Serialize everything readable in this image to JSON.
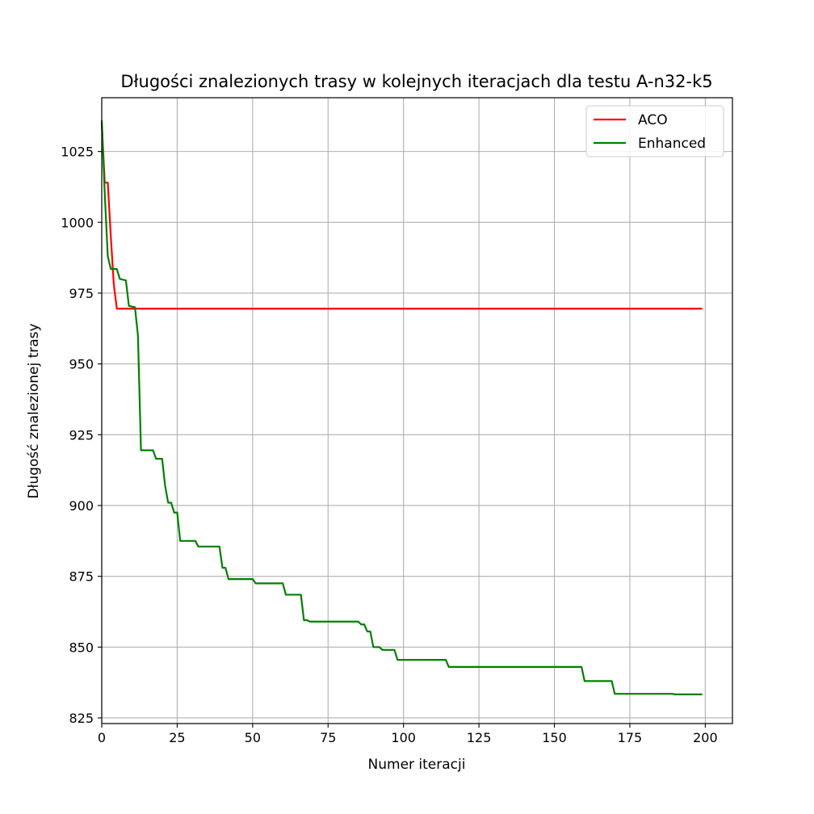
{
  "chart_data": {
    "type": "line",
    "title": "Długości znalezionych trasy w kolejnych iteracjach dla testu A-n32-k5",
    "xlabel": "Numer iteracji",
    "ylabel": "Długość znalezionej trasy",
    "xlim": [
      0,
      209
    ],
    "ylim": [
      823,
      1044
    ],
    "xticks": [
      0,
      25,
      50,
      75,
      100,
      125,
      150,
      175,
      200
    ],
    "yticks": [
      825,
      850,
      875,
      900,
      925,
      950,
      975,
      1000,
      1025
    ],
    "grid": true,
    "legend_position": "top-right",
    "series": [
      {
        "name": "ACO",
        "color": "#ff0000",
        "points": [
          [
            0,
            1035
          ],
          [
            1,
            1014
          ],
          [
            2,
            1014
          ],
          [
            3,
            995
          ],
          [
            4,
            978
          ],
          [
            5,
            969.5
          ],
          [
            199,
            969.5
          ]
        ]
      },
      {
        "name": "Enhanced",
        "color": "#008000",
        "points": [
          [
            0,
            1036
          ],
          [
            1,
            1010
          ],
          [
            2,
            988
          ],
          [
            3,
            983.5
          ],
          [
            5,
            983.5
          ],
          [
            6,
            980
          ],
          [
            8,
            979.5
          ],
          [
            9,
            970.5
          ],
          [
            11,
            970
          ],
          [
            12,
            960
          ],
          [
            13,
            919.5
          ],
          [
            17,
            919.5
          ],
          [
            18,
            916.5
          ],
          [
            20,
            916.5
          ],
          [
            21,
            907
          ],
          [
            22,
            901
          ],
          [
            23,
            901
          ],
          [
            24,
            897.5
          ],
          [
            25,
            897.5
          ],
          [
            26,
            887.5
          ],
          [
            31,
            887.5
          ],
          [
            32,
            885.5
          ],
          [
            39,
            885.5
          ],
          [
            40,
            878
          ],
          [
            41,
            878
          ],
          [
            42,
            874
          ],
          [
            50,
            874
          ],
          [
            51,
            872.5
          ],
          [
            60,
            872.5
          ],
          [
            61,
            868.5
          ],
          [
            66,
            868.5
          ],
          [
            67,
            859.5
          ],
          [
            68,
            859.5
          ],
          [
            69,
            859
          ],
          [
            85,
            859
          ],
          [
            86,
            858
          ],
          [
            87,
            858
          ],
          [
            88,
            855.5
          ],
          [
            89,
            855.5
          ],
          [
            90,
            850
          ],
          [
            92,
            850
          ],
          [
            93,
            849
          ],
          [
            97,
            849
          ],
          [
            98,
            845.5
          ],
          [
            114,
            845.5
          ],
          [
            115,
            843
          ],
          [
            159,
            843
          ],
          [
            160,
            838
          ],
          [
            169,
            838
          ],
          [
            170,
            833.5
          ],
          [
            189,
            833.5
          ],
          [
            190,
            833.3
          ],
          [
            199,
            833.3
          ]
        ]
      }
    ]
  }
}
